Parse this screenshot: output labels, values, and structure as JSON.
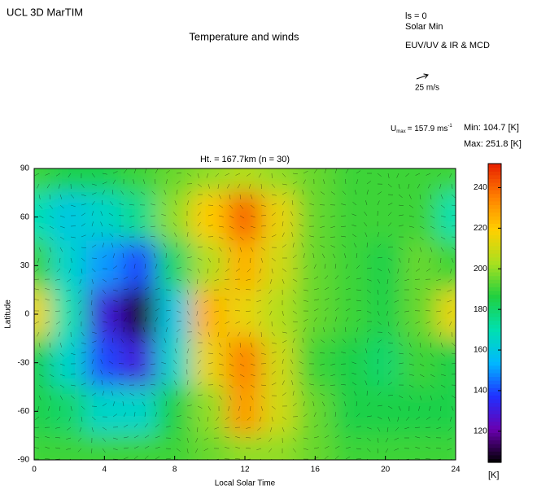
{
  "chart_data": {
    "type": "heatmap",
    "header": {
      "model": "UCL 3D MarTIM",
      "title": "Temperature and winds",
      "ls": "ls = 0",
      "solar": "Solar Min",
      "scheme": "EUV/UV & IR & MCD",
      "arrow_scale": "25 m/s"
    },
    "u_max": {
      "symbol": "U",
      "sub": "max",
      "text": "= 157.9 ms",
      "sup": "-1"
    },
    "min": {
      "label": "Min:",
      "value": 104.7,
      "unit": "[K]"
    },
    "max": {
      "label": "Max:",
      "value": 251.8,
      "unit": "[K]"
    },
    "subtitle": "Ht. = 167.7km (n = 30)",
    "x_label": "Local Solar Time",
    "y_label": "Latitude",
    "x": [
      0,
      2,
      4,
      6,
      8,
      10,
      12,
      14,
      16,
      18,
      20,
      22,
      24
    ],
    "y": [
      90,
      60,
      30,
      0,
      -30,
      -60,
      -90
    ],
    "values": [
      [
        190,
        185,
        185,
        190,
        195,
        200,
        205,
        200,
        195,
        190,
        190,
        190,
        190
      ],
      [
        170,
        160,
        165,
        175,
        200,
        220,
        240,
        215,
        195,
        190,
        190,
        190,
        170
      ],
      [
        190,
        165,
        150,
        140,
        180,
        205,
        225,
        210,
        195,
        190,
        185,
        195,
        190
      ],
      [
        215,
        170,
        130,
        110,
        160,
        225,
        215,
        205,
        195,
        190,
        185,
        195,
        215
      ],
      [
        185,
        165,
        140,
        130,
        165,
        215,
        235,
        210,
        190,
        185,
        180,
        190,
        185
      ],
      [
        185,
        180,
        165,
        165,
        185,
        200,
        230,
        210,
        195,
        185,
        185,
        185,
        185
      ],
      [
        190,
        190,
        190,
        190,
        190,
        195,
        200,
        200,
        195,
        190,
        190,
        190,
        190
      ]
    ],
    "xlim": [
      0,
      24
    ],
    "xticks": [
      0,
      4,
      8,
      12,
      16,
      20,
      24
    ],
    "ylim": [
      -90,
      90
    ],
    "yticks": [
      90,
      60,
      30,
      0,
      -30,
      -60,
      -90
    ],
    "clim": [
      104.7,
      251.8
    ],
    "cticks": [
      120,
      140,
      160,
      180,
      200,
      220,
      240
    ],
    "colorbar_unit": "[K]",
    "colormap": [
      "#000000",
      "#6a00b0",
      "#2030ff",
      "#00b8ff",
      "#00e0b0",
      "#20d040",
      "#a8e020",
      "#ffd000",
      "#ff8000",
      "#e82000"
    ]
  }
}
